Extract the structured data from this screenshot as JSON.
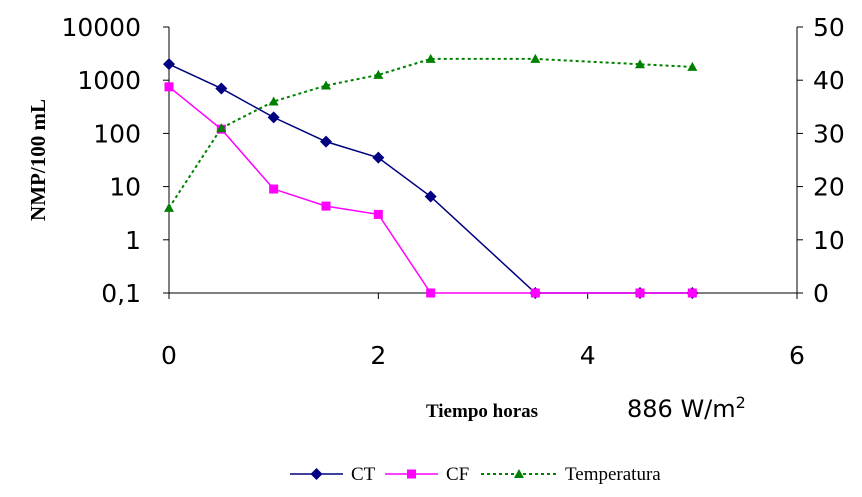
{
  "chart_data": {
    "type": "line",
    "xlabel": "Tiempo horas",
    "ylabel": "NMP/100 mL",
    "annotation": {
      "text": "886 W/m",
      "sup": "2"
    },
    "xlim": [
      0,
      6
    ],
    "x_ticks": [
      "0",
      "2",
      "4",
      "6"
    ],
    "y_left": {
      "scale": "log",
      "lim": [
        0.1,
        10000
      ],
      "ticks": [
        {
          "value": 0.1,
          "label": "0,1"
        },
        {
          "value": 1,
          "label": "1"
        },
        {
          "value": 10,
          "label": "10"
        },
        {
          "value": 100,
          "label": "100"
        },
        {
          "value": 1000,
          "label": "1000"
        },
        {
          "value": 10000,
          "label": "10000"
        }
      ]
    },
    "y_right": {
      "scale": "linear",
      "lim": [
        0,
        50
      ],
      "ticks": [
        "0",
        "10",
        "20",
        "30",
        "40",
        "50"
      ]
    },
    "grid": false,
    "legend_position": "bottom",
    "series": [
      {
        "name": "CT",
        "axis": "left",
        "color": "#000080",
        "line_style": "solid",
        "marker": "diamond",
        "x": [
          0,
          0.5,
          1,
          1.5,
          2,
          2.5,
          3.5,
          4.5,
          5
        ],
        "y": [
          2000,
          700,
          200,
          70,
          35,
          6.5,
          0.1,
          0.1,
          0.1
        ]
      },
      {
        "name": "CF",
        "axis": "left",
        "color": "#ff00ff",
        "line_style": "solid",
        "marker": "square",
        "x": [
          0,
          0.5,
          1,
          1.5,
          2,
          2.5,
          3.5,
          4.5,
          5
        ],
        "y": [
          750,
          120,
          9,
          4.3,
          3,
          0.1,
          0.1,
          0.1,
          0.1
        ]
      },
      {
        "name": "Temperatura",
        "axis": "right",
        "color": "#008000",
        "line_style": "dotted",
        "marker": "triangle",
        "x": [
          0,
          0.5,
          1,
          1.5,
          2,
          2.5,
          3.5,
          4.5,
          5
        ],
        "y": [
          16,
          31,
          36,
          39,
          41,
          44,
          44,
          43,
          42.5
        ]
      }
    ]
  }
}
